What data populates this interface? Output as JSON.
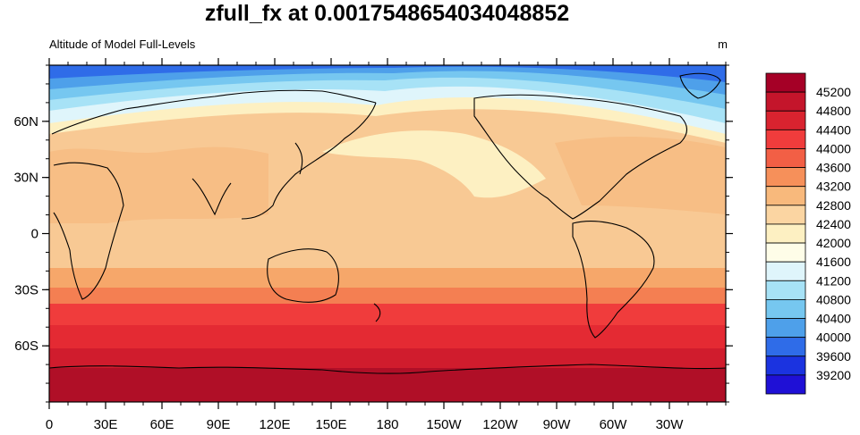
{
  "title": "zfull_fx at 0.001754865403404885​2",
  "title_text": "zfull_fx at 0.0017548654034048852",
  "subtitle_left": "Altitude of Model Full-Levels",
  "subtitle_right": "m",
  "lat_labels": [
    "60N",
    "30N",
    "0",
    "30S",
    "60S"
  ],
  "lon_labels": [
    "0",
    "30E",
    "60E",
    "90E",
    "120E",
    "150E",
    "180",
    "150W",
    "120W",
    "90W",
    "60W",
    "30W"
  ],
  "colorbar": {
    "levels": [
      "45200",
      "44800",
      "44400",
      "44000",
      "43600",
      "43200",
      "42800",
      "42400",
      "42000",
      "41600",
      "41200",
      "40800",
      "40400",
      "40000",
      "39600",
      "39200"
    ],
    "colors": [
      "#a50026",
      "#c4152b",
      "#d9232f",
      "#f03c3c",
      "#f25f45",
      "#f6905a",
      "#f8b97c",
      "#fbd5a2",
      "#fdf0c2",
      "#fefde8",
      "#dff5fb",
      "#a7e2f6",
      "#76c7f0",
      "#4ea0ea",
      "#2f6ce8",
      "#1b33e0",
      "#1f10d6"
    ]
  },
  "colors": {
    "frame": "#000000",
    "coast": "#000000"
  }
}
